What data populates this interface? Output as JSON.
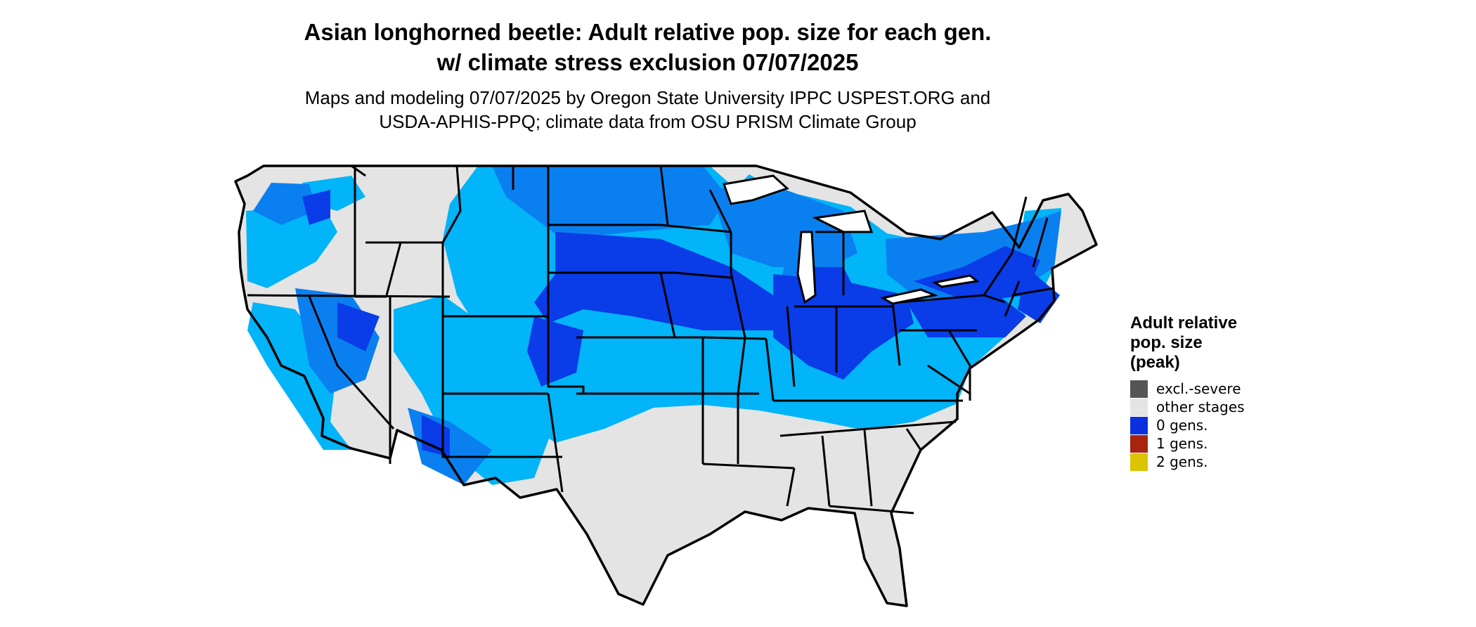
{
  "title": {
    "line1": "Asian longhorned beetle: Adult relative pop. size for each gen.",
    "line2": "w/ climate stress exclusion 07/07/2025"
  },
  "subtitle": {
    "line1": "Maps and modeling 07/07/2025 by Oregon State University IPPC USPEST.ORG and",
    "line2": "USDA-APHIS-PPQ; climate data from OSU PRISM Climate Group"
  },
  "legend": {
    "title_line1": "Adult relative",
    "title_line2": "pop. size",
    "title_line3": "(peak)",
    "items": [
      {
        "label": "excl.-severe",
        "color": "#555555"
      },
      {
        "label": "other stages",
        "color": "#e4e4e4"
      },
      {
        "label": "0 gens.",
        "color": "#0a30e0"
      },
      {
        "label": "1 gens.",
        "color": "#a82410"
      },
      {
        "label": "2 gens.",
        "color": "#dcc400"
      }
    ]
  },
  "map_colors": {
    "other_stages": "#e4e4e4",
    "gens0_dark": "#0a3ce8",
    "gens0_mid": "#0a80f0",
    "gens0_light": "#02b4f8",
    "border": "#000000"
  }
}
